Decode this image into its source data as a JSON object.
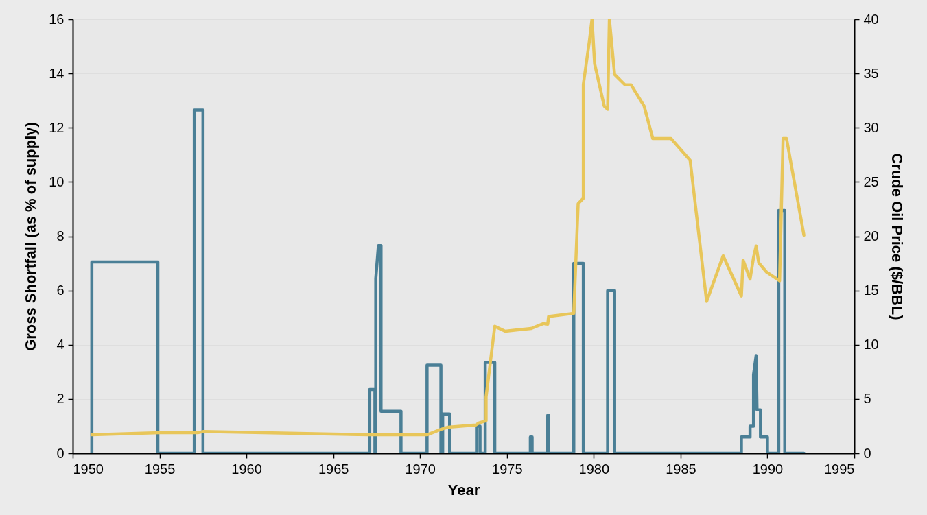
{
  "chart_data": {
    "type": "line",
    "xlabel": "Year",
    "ylabel": "Gross Shortfall (as % of supply)",
    "y2label": "Crude Oil Price ($/BBL)",
    "xlim": [
      1950,
      1995
    ],
    "xticks": [
      1950,
      1955,
      1960,
      1965,
      1970,
      1975,
      1980,
      1985,
      1990,
      1995
    ],
    "ylim": [
      0,
      16
    ],
    "yticks": [
      0,
      2,
      4,
      6,
      8,
      10,
      12,
      14,
      16
    ],
    "y2lim": [
      0,
      40
    ],
    "y2ticks": [
      0,
      5,
      10,
      15,
      20,
      25,
      30,
      35,
      40
    ],
    "grid": "y",
    "line_style": "solid",
    "marker": "none",
    "series": [
      {
        "color": "#4a7f96",
        "axis": "y",
        "x": [
          1951.1,
          1951.1,
          1954.9,
          1954.9,
          1957.0,
          1957.0,
          1957.5,
          1957.5,
          1967.1,
          1967.1,
          1967.4,
          1967.4,
          1967.45,
          1967.45,
          1967.6,
          1967.75,
          1967.75,
          1968.9,
          1968.9,
          1970.4,
          1970.4,
          1971.2,
          1971.2,
          1971.3,
          1971.3,
          1971.7,
          1971.7,
          1973.25,
          1973.25,
          1973.45,
          1973.45,
          1973.75,
          1973.75,
          1974.3,
          1974.3,
          1976.35,
          1976.35,
          1976.45,
          1976.45,
          1977.35,
          1977.35,
          1977.4,
          1977.4,
          1978.85,
          1978.85,
          1979.4,
          1979.4,
          1980.8,
          1980.8,
          1981.2,
          1981.2,
          1988.5,
          1988.5,
          1989.0,
          1989.0,
          1989.2,
          1989.2,
          1989.35,
          1989.4,
          1989.6,
          1989.6,
          1990.0,
          1990.0,
          1990.65,
          1990.65,
          1991.0,
          1991.0,
          1992.1
        ],
        "values": [
          0,
          7.05,
          7.05,
          0,
          0,
          12.65,
          12.65,
          0,
          0,
          2.35,
          2.35,
          0,
          0,
          6.45,
          7.65,
          7.65,
          1.55,
          1.55,
          0,
          0,
          3.25,
          3.25,
          0,
          0,
          1.45,
          1.45,
          0,
          0,
          1.0,
          1.0,
          0,
          0,
          3.35,
          3.35,
          0,
          0,
          0.6,
          0.6,
          0,
          0,
          1.4,
          1.4,
          0,
          0,
          7.0,
          7.0,
          0,
          0,
          6.0,
          6.0,
          0,
          0,
          0.6,
          0.6,
          1.0,
          1.0,
          2.9,
          3.6,
          1.6,
          1.6,
          0.6,
          0.6,
          0,
          0,
          8.95,
          8.95,
          0,
          0
        ]
      },
      {
        "color": "#e8c65a",
        "axis": "y2",
        "x": [
          1951.1,
          1955.0,
          1957.2,
          1957.5,
          1967.0,
          1970.4,
          1971.2,
          1971.6,
          1973.2,
          1973.4,
          1973.8,
          1973.8,
          1974.3,
          1974.9,
          1975.8,
          1976.4,
          1977.1,
          1977.35,
          1977.4,
          1978.85,
          1979.1,
          1979.4,
          1979.4,
          1979.75,
          1979.9,
          1980.05,
          1980.6,
          1980.8,
          1980.9,
          1981.2,
          1981.8,
          1982.15,
          1982.9,
          1983.4,
          1984.45,
          1985.55,
          1986.5,
          1987.45,
          1988.5,
          1988.6,
          1989.0,
          1989.2,
          1989.35,
          1989.5,
          1989.95,
          1990.7,
          1990.9,
          1991.1,
          1992.1
        ],
        "values": [
          1.7,
          1.9,
          1.9,
          2.0,
          1.7,
          1.7,
          2.2,
          2.4,
          2.6,
          2.8,
          3.0,
          5.2,
          11.7,
          11.25,
          11.4,
          11.5,
          11.95,
          11.9,
          12.6,
          12.9,
          23.0,
          23.5,
          34.0,
          38.0,
          40.0,
          35.9,
          32.0,
          31.7,
          40.0,
          34.9,
          33.95,
          33.95,
          32.0,
          29.0,
          29.0,
          27.0,
          14.0,
          18.2,
          14.5,
          17.8,
          16.05,
          18.05,
          19.1,
          17.55,
          16.7,
          15.9,
          29.0,
          29.0,
          20.1
        ]
      }
    ]
  }
}
